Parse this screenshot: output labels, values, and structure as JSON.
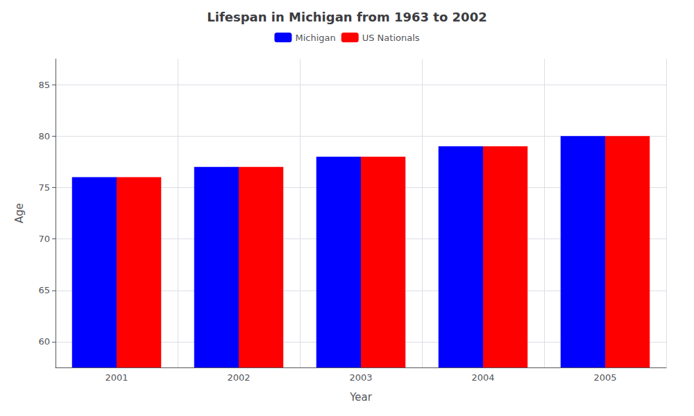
{
  "chart_data": {
    "type": "bar",
    "title": "Lifespan in Michigan from 1963 to 2002",
    "x_label": "Year",
    "y_label": "Age",
    "categories": [
      "2001",
      "2002",
      "2003",
      "2004",
      "2005"
    ],
    "series": [
      {
        "name": "Michigan",
        "color": "#0000ff",
        "values": [
          76,
          77,
          78,
          79,
          80
        ]
      },
      {
        "name": "US Nationals",
        "color": "#ff0000",
        "values": [
          76,
          77,
          78,
          79,
          80
        ]
      }
    ],
    "ylim": [
      57.5,
      87.5
    ],
    "yticks": [
      60,
      65,
      70,
      75,
      80,
      85
    ],
    "grid": true,
    "legend": "top"
  }
}
